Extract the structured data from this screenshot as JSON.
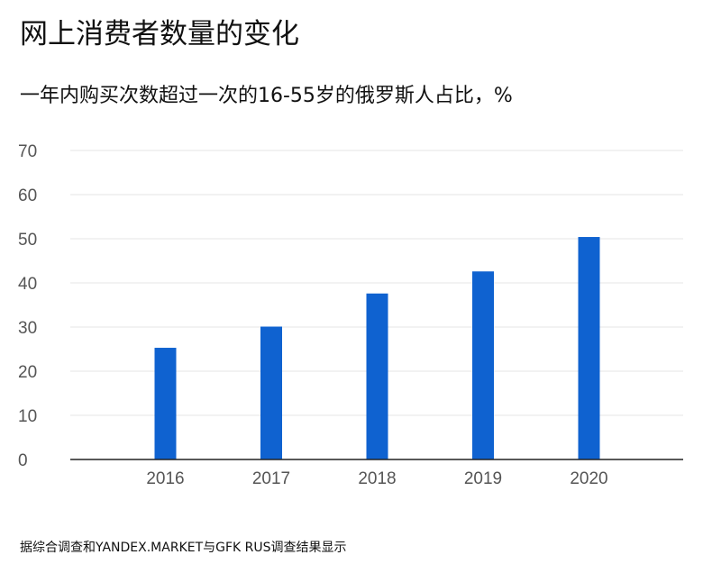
{
  "title": "网上消费者数量的变化",
  "subtitle": "一年内购买次数超过一次的16-55岁的俄罗斯人占比，%",
  "source": "据综合调查和YANDEX.MARKET与GFK RUS调查结果显示",
  "colors": {
    "bar": "#0f62d0",
    "grid": "#e4e4e4",
    "axis": "#222222",
    "tick_text": "#555555"
  },
  "chart_data": {
    "type": "bar",
    "title": "网上消费者数量的变化",
    "subtitle": "一年内购买次数超过一次的16-55岁的俄罗斯人占比，%",
    "xlabel": "",
    "ylabel": "",
    "categories": [
      "2016",
      "2017",
      "2018",
      "2019",
      "2020"
    ],
    "values": [
      25.3,
      30.1,
      37.6,
      42.6,
      50.4
    ],
    "ylim": [
      0,
      70
    ],
    "yticks": [
      "0",
      "10",
      "20",
      "30",
      "40",
      "50",
      "60",
      "70"
    ],
    "grid": true,
    "legend": "none"
  }
}
